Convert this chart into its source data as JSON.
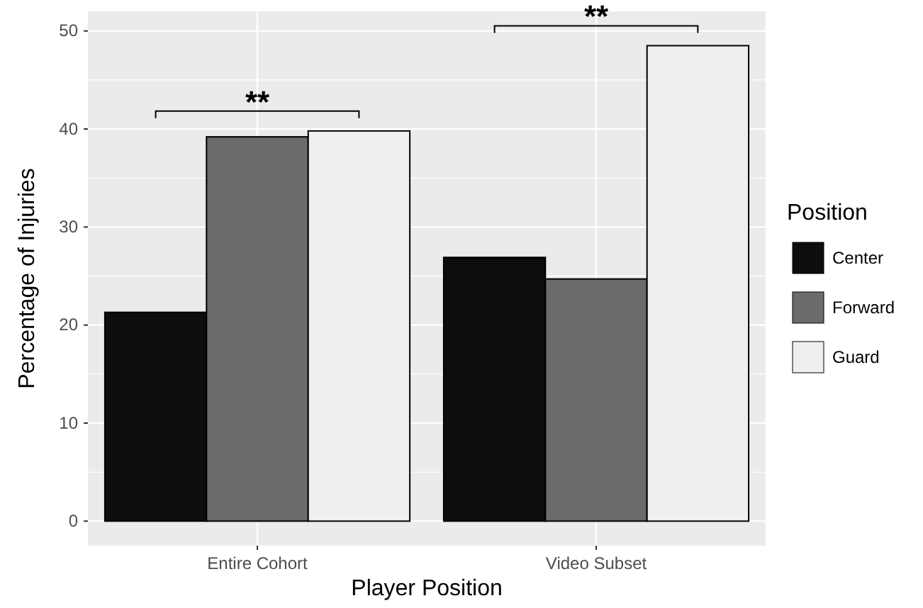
{
  "chart_data": {
    "type": "bar",
    "xlabel": "Player Position",
    "ylabel": "Percentage of Injuries",
    "legend_title": "Position",
    "categories": [
      "Entire Cohort",
      "Video Subset"
    ],
    "series": [
      {
        "name": "Center",
        "color": "#0d0d0d",
        "values": [
          21.3,
          26.9
        ]
      },
      {
        "name": "Forward",
        "color": "#6b6b6b",
        "values": [
          39.2,
          24.7
        ]
      },
      {
        "name": "Guard",
        "color": "#efefef",
        "values": [
          39.8,
          48.5
        ]
      }
    ],
    "ylim": [
      -2.5,
      52
    ],
    "yticks": [
      0,
      10,
      20,
      30,
      40,
      50
    ],
    "grid": true,
    "legend": "right",
    "annotations": [
      "**",
      "**"
    ]
  }
}
